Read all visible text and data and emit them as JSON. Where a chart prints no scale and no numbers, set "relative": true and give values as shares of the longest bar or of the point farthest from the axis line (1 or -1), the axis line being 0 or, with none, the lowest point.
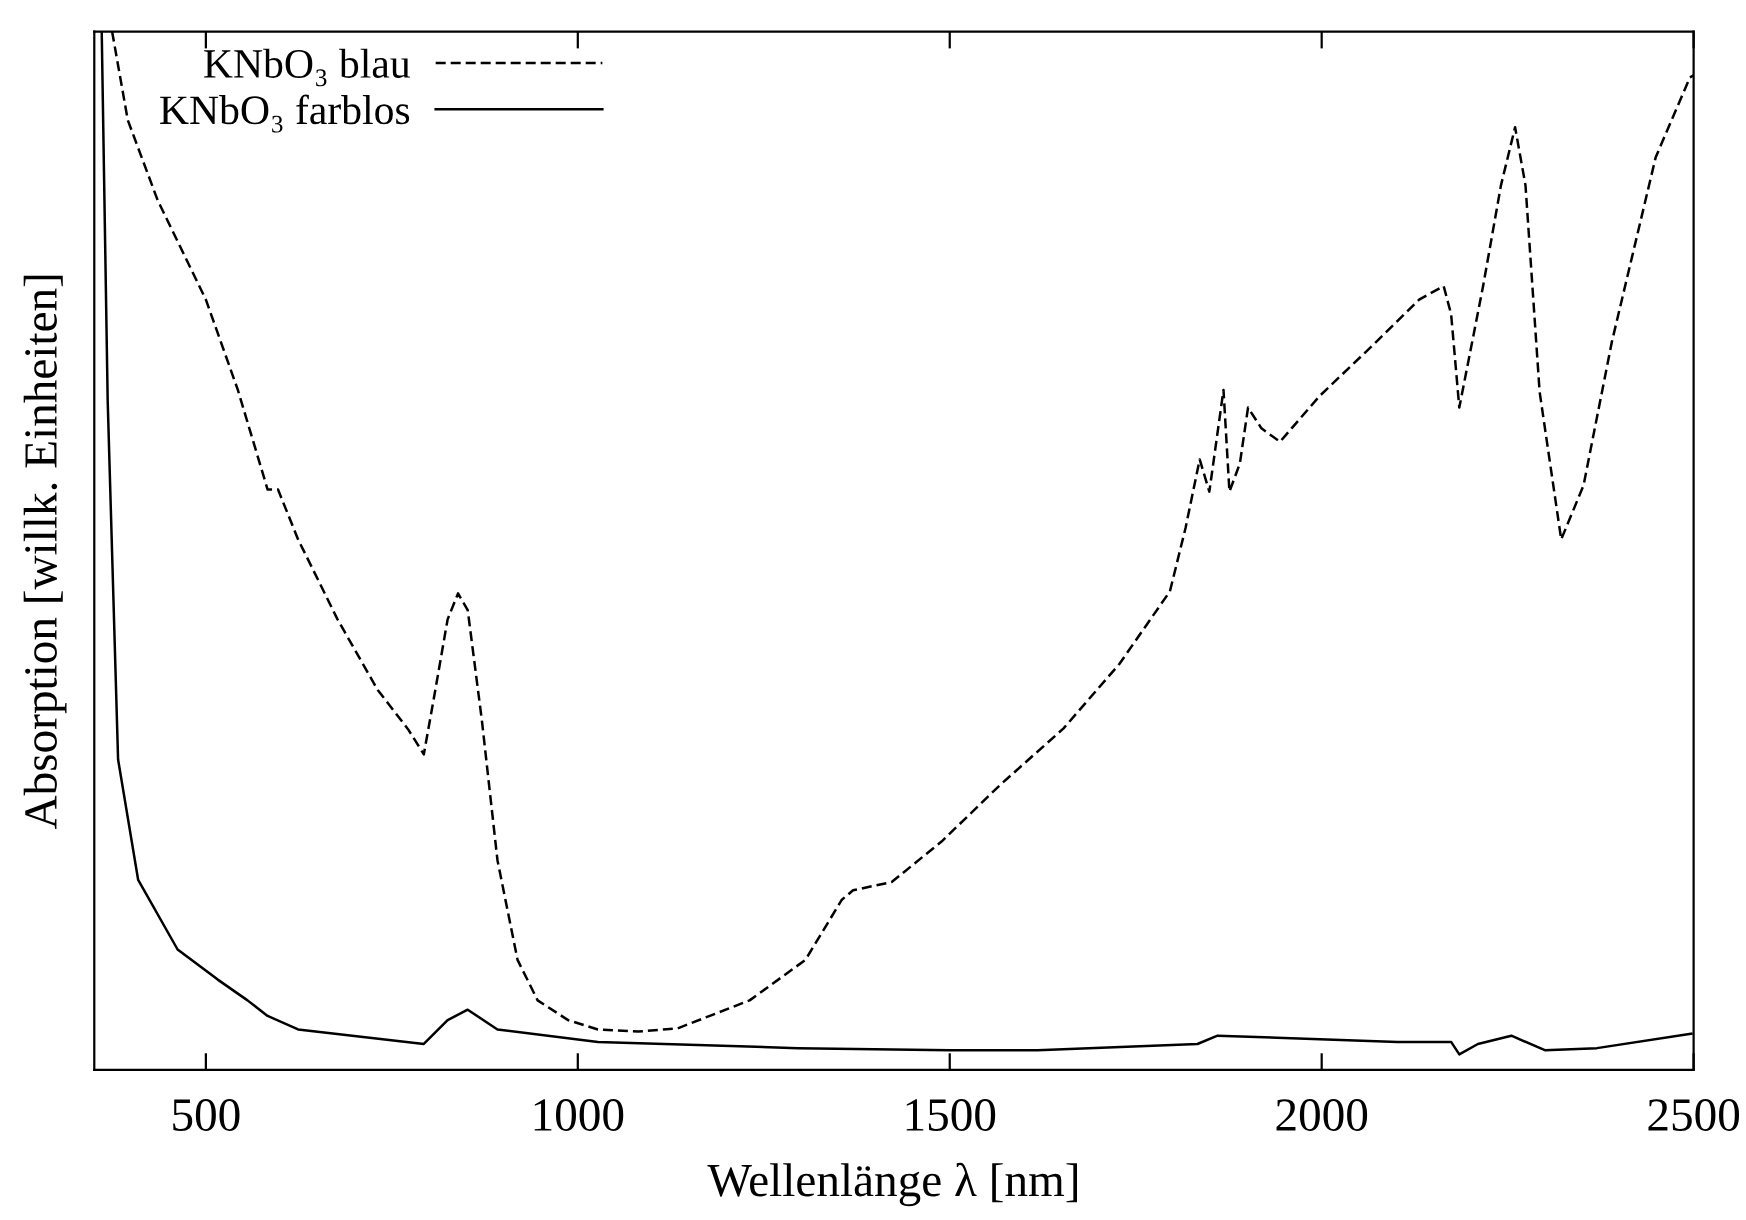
{
  "chart_data": {
    "type": "line",
    "relative": true,
    "xlabel": "Wellenlänge λ [nm]",
    "ylabel": "Absorption [willk. Einheiten]",
    "xlim": [
      350,
      2500
    ],
    "xticks": [
      500,
      1000,
      1500,
      2000,
      2500
    ],
    "tick_labels": "x",
    "grid": false,
    "legend": "top left",
    "series": [
      {
        "name": "KNbO₃ blau",
        "color": "#000000",
        "line_style": "dashed",
        "x": [
          374,
          395,
          435,
          500,
          543,
          583,
          597,
          624,
          677,
          731,
          772,
          793,
          806,
          825,
          839,
          852,
          871,
          892,
          919,
          946,
          987,
          1027,
          1081,
          1134,
          1231,
          1306,
          1355,
          1370,
          1422,
          1489,
          1567,
          1653,
          1728,
          1796,
          1817,
          1836,
          1849,
          1868,
          1876,
          1890,
          1901,
          1919,
          1944,
          1997,
          2073,
          2131,
          2164,
          2174,
          2185,
          2217,
          2241,
          2260,
          2274,
          2293,
          2322,
          2352,
          2390,
          2449,
          2495,
          2500
        ],
        "values": [
          1.0,
          0.915,
          0.838,
          0.742,
          0.655,
          0.559,
          0.559,
          0.511,
          0.434,
          0.366,
          0.328,
          0.304,
          0.356,
          0.434,
          0.459,
          0.443,
          0.337,
          0.202,
          0.106,
          0.067,
          0.048,
          0.039,
          0.037,
          0.04,
          0.067,
          0.106,
          0.164,
          0.173,
          0.181,
          0.22,
          0.274,
          0.329,
          0.391,
          0.461,
          0.522,
          0.588,
          0.557,
          0.655,
          0.557,
          0.584,
          0.638,
          0.618,
          0.605,
          0.649,
          0.701,
          0.742,
          0.755,
          0.728,
          0.638,
          0.755,
          0.852,
          0.908,
          0.852,
          0.653,
          0.511,
          0.563,
          0.701,
          0.879,
          0.956,
          0.958
        ]
      },
      {
        "name": "KNbO₃ farblos",
        "color": "#000000",
        "line_style": "solid",
        "x": [
          360,
          368,
          382,
          409,
          462,
          516,
          556,
          583,
          624,
          793,
          825,
          852,
          892,
          1027,
          1296,
          1500,
          1618,
          1833,
          1860,
          2102,
          2174,
          2185,
          2210,
          2255,
          2300,
          2370,
          2497
        ],
        "values": [
          1.0,
          0.645,
          0.299,
          0.183,
          0.116,
          0.087,
          0.067,
          0.052,
          0.039,
          0.025,
          0.048,
          0.058,
          0.039,
          0.027,
          0.021,
          0.019,
          0.019,
          0.025,
          0.033,
          0.027,
          0.027,
          0.015,
          0.025,
          0.033,
          0.019,
          0.021,
          0.035
        ]
      }
    ]
  }
}
